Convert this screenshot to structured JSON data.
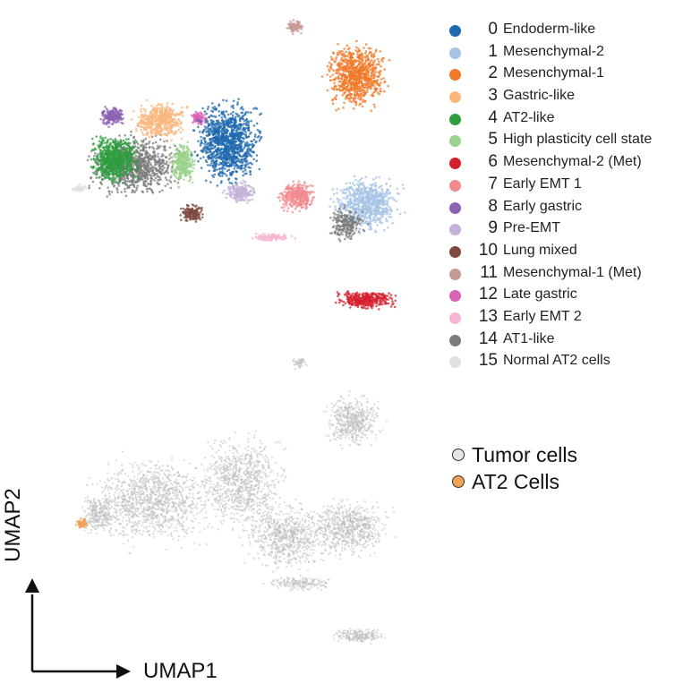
{
  "chart_data": [
    {
      "type": "scatter",
      "title": "",
      "embedding": "UMAP",
      "color_by": "cluster",
      "legend": [
        {
          "id": "0",
          "label": "Endoderm-like",
          "color": "#1f6aad"
        },
        {
          "id": "1",
          "label": "Mesenchymal-2",
          "color": "#a6c3e6"
        },
        {
          "id": "2",
          "label": "Mesenchymal-1",
          "color": "#f07a2a"
        },
        {
          "id": "3",
          "label": "Gastric-like",
          "color": "#f9b77d"
        },
        {
          "id": "4",
          "label": "AT2-like",
          "color": "#2e9e3f"
        },
        {
          "id": "5",
          "label": "High plasticity cell state",
          "color": "#99d28a"
        },
        {
          "id": "6",
          "label": "Mesenchymal-2 (Met)",
          "color": "#d4202e"
        },
        {
          "id": "7",
          "label": "Early EMT 1",
          "color": "#f28a8d"
        },
        {
          "id": "8",
          "label": "Early gastric",
          "color": "#8c62b4"
        },
        {
          "id": "9",
          "label": "Pre-EMT",
          "color": "#c4b0d8"
        },
        {
          "id": "10",
          "label": "Lung mixed",
          "color": "#7f4a3f"
        },
        {
          "id": "11",
          "label": "Mesenchymal-1 (Met)",
          "color": "#c49a93"
        },
        {
          "id": "12",
          "label": "Late gastric",
          "color": "#d862b6"
        },
        {
          "id": "13",
          "label": "Early EMT 2",
          "color": "#f6b5d2"
        },
        {
          "id": "14",
          "label": "AT1-like",
          "color": "#7b7b7b"
        },
        {
          "id": "15",
          "label": "Normal AT2 cells",
          "color": "#e0e0e0"
        }
      ]
    },
    {
      "type": "scatter",
      "title": "",
      "embedding": "UMAP",
      "color_by": "cell type",
      "legend": [
        {
          "label": "Tumor cells",
          "color": "#e6e6e6"
        },
        {
          "label": "AT2 Cells",
          "color": "#f2a257"
        }
      ]
    }
  ],
  "axes": {
    "x_label": "UMAP1",
    "y_label": "UMAP2"
  }
}
